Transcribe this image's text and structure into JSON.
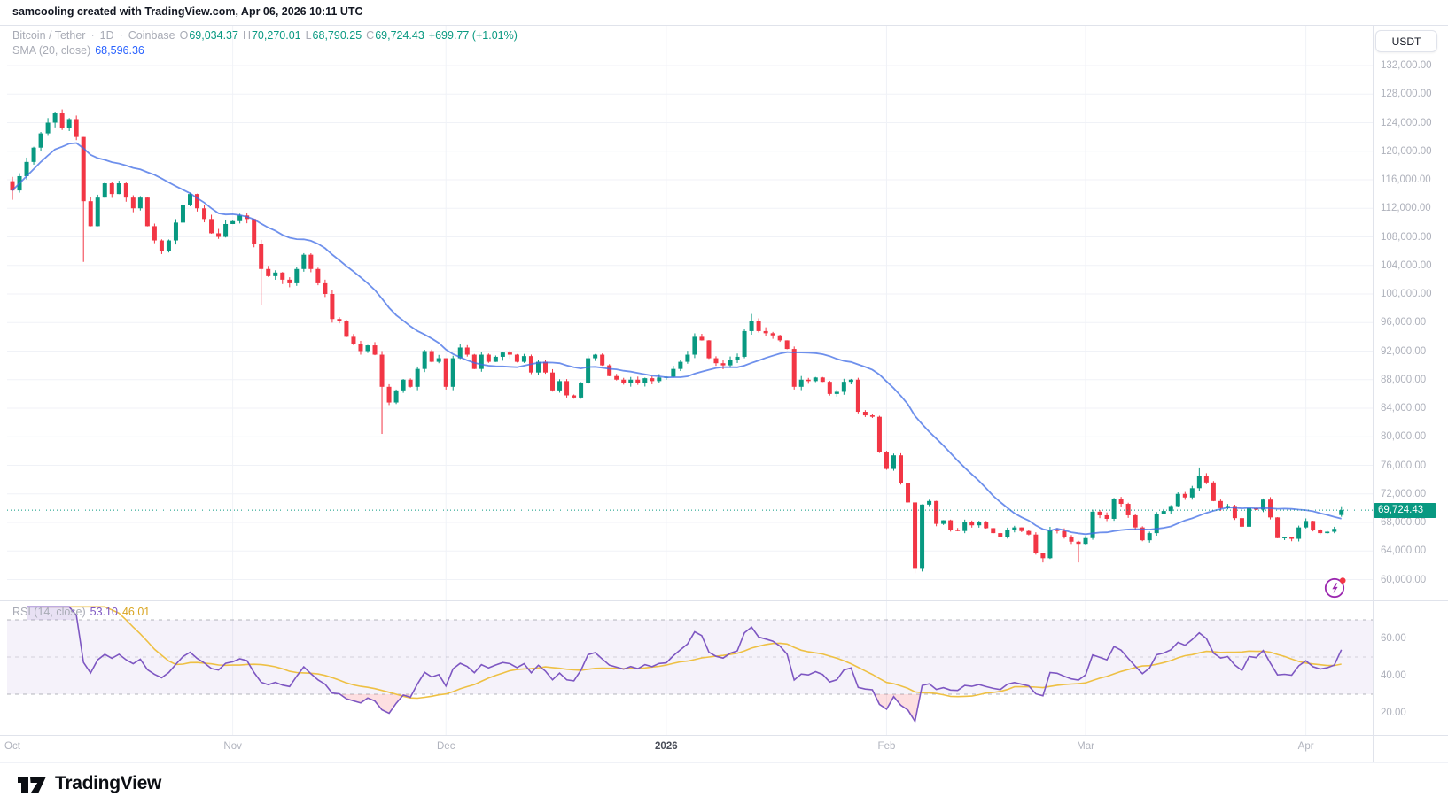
{
  "header": {
    "attribution": "samcooling created with TradingView.com, Apr 06, 2026 10:11 UTC"
  },
  "legend": {
    "symbol": "Bitcoin / Tether",
    "sep": "·",
    "interval": "1D",
    "exchange": "Coinbase",
    "ohlc": {
      "o_label": "O",
      "o": "69,034.37",
      "h_label": "H",
      "h": "70,270.01",
      "l_label": "L",
      "l": "68,790.25",
      "c_label": "C",
      "c": "69,724.43",
      "change": "+699.77 (+1.01%)"
    },
    "sma": {
      "label": "SMA (20, close)",
      "value": "68,596.36"
    },
    "rsi": {
      "label": "RSI (14, close)",
      "value": "53.10",
      "ma_value": "46.01"
    }
  },
  "price_scale": {
    "currency": "USDT",
    "ticks": [
      "132,000.00",
      "128,000.00",
      "124,000.00",
      "120,000.00",
      "116,000.00",
      "112,000.00",
      "108,000.00",
      "104,000.00",
      "100,000.00",
      "96,000.00",
      "92,000.00",
      "88,000.00",
      "84,000.00",
      "80,000.00",
      "76,000.00",
      "72,000.00",
      "68,000.00",
      "64,000.00",
      "60,000.00"
    ],
    "last_price": "69,724.43"
  },
  "rsi_scale": {
    "ticks": [
      "60.00",
      "40.00",
      "20.00"
    ]
  },
  "time_axis": {
    "labels": [
      {
        "text": "Oct",
        "day": 0,
        "bold": false
      },
      {
        "text": "Nov",
        "day": 31,
        "bold": false
      },
      {
        "text": "Dec",
        "day": 61,
        "bold": false
      },
      {
        "text": "2026",
        "day": 92,
        "bold": true
      },
      {
        "text": "Feb",
        "day": 123,
        "bold": false
      },
      {
        "text": "Mar",
        "day": 151,
        "bold": false
      },
      {
        "text": "Apr",
        "day": 182,
        "bold": false
      }
    ]
  },
  "footer": {
    "brand": "TradingView"
  },
  "colors": {
    "up": "#089981",
    "down": "#F23645",
    "sma_line": "#3d6be5",
    "rsi_line": "#7E57C2",
    "rsi_ma_line": "#eec044",
    "badge_bg": "#089981",
    "grid": "#f0f2f7",
    "divider": "#e0e3eb",
    "axis_text": "#aeb1bb",
    "band_fill": "rgba(126,87,194,0.08)",
    "oversold_fill": "rgba(242,54,69,0.16)",
    "overbought_fill": "rgba(126,87,194,0.18)"
  },
  "chart_data": {
    "type": "candlestick",
    "title": "Bitcoin / Tether · 1D · Coinbase",
    "x_start_date": "2025-10-01",
    "x_end_date": "2026-04-06",
    "y_axis": {
      "min": 58000,
      "max": 134000,
      "tick_step": 4000,
      "unit": "USDT"
    },
    "rsi_levels": [
      70,
      50,
      30
    ],
    "indicators": [
      {
        "name": "SMA",
        "period": 20,
        "source": "close",
        "last": 68596.36
      },
      {
        "name": "RSI",
        "period": 14,
        "source": "close",
        "last": 53.1,
        "ma_last": 46.01
      }
    ],
    "last_candle": {
      "open": 69034.37,
      "high": 70270.01,
      "low": 68790.25,
      "close": 69724.43,
      "change": 699.77,
      "change_pct": 1.01
    },
    "daily_closes": [
      114500,
      116500,
      118500,
      120500,
      122500,
      124000,
      125300,
      123200,
      124500,
      122000,
      113000,
      109500,
      113500,
      115500,
      114000,
      115500,
      113500,
      112000,
      113500,
      109500,
      107500,
      106000,
      107500,
      110000,
      112500,
      114000,
      112000,
      110500,
      108500,
      108000,
      109800,
      110200,
      111000,
      110500,
      107000,
      103500,
      102500,
      103000,
      102000,
      101500,
      103500,
      105500,
      103500,
      101500,
      100000,
      96500,
      96200,
      94000,
      93000,
      92000,
      92800,
      91500,
      87000,
      84800,
      86500,
      88000,
      87000,
      89500,
      92000,
      90500,
      91000,
      87000,
      91000,
      92500,
      91500,
      89500,
      91500,
      90500,
      91200,
      91800,
      91500,
      90500,
      91300,
      89000,
      90500,
      89000,
      86500,
      87800,
      85800,
      85500,
      87500,
      91000,
      91500,
      90000,
      88500,
      88000,
      87500,
      88000,
      87500,
      88200,
      87800,
      88300,
      88400,
      89500,
      90500,
      91500,
      94000,
      93500,
      91000,
      90300,
      90000,
      90800,
      91200,
      94800,
      96200,
      94800,
      94500,
      94200,
      93500,
      92300,
      87000,
      88000,
      87800,
      88300,
      87700,
      86000,
      86300,
      87700,
      88000,
      83500,
      83000,
      82800,
      77800,
      75500,
      77400,
      73500,
      70800,
      61500,
      70500,
      71000,
      67800,
      68300,
      67000,
      66800,
      68000,
      67600,
      68000,
      67200,
      66500,
      66000,
      67000,
      67300,
      66800,
      66300,
      63700,
      63000,
      67000,
      66800,
      66000,
      65300,
      65000,
      65800,
      69500,
      69000,
      68500,
      71300,
      70600,
      69000,
      67300,
      65500,
      66500,
      69200,
      69600,
      70300,
      72000,
      71500,
      72800,
      74500,
      73600,
      71000,
      70000,
      70300,
      68600,
      67400,
      70000,
      69800,
      71200,
      68700,
      65800,
      65900,
      65700,
      67300,
      68200,
      67000,
      66500,
      66700,
      67100,
      69724
    ],
    "wick_overrides": {
      "10": {
        "low": 104500
      },
      "35": {
        "low": 98400
      },
      "52": {
        "low": 80400
      },
      "104": {
        "high": 97200
      },
      "127": {
        "low": 60900
      },
      "145": {
        "low": 62400
      },
      "150": {
        "low": 62400
      },
      "167": {
        "high": 75700
      }
    },
    "candle_overrides": {
      "0": {
        "open": 115800,
        "high": 116400,
        "low": 113200
      },
      "187": {
        "open": 69034.37,
        "high": 70270.01,
        "low": 68790.25,
        "close": 69724.43
      }
    }
  }
}
